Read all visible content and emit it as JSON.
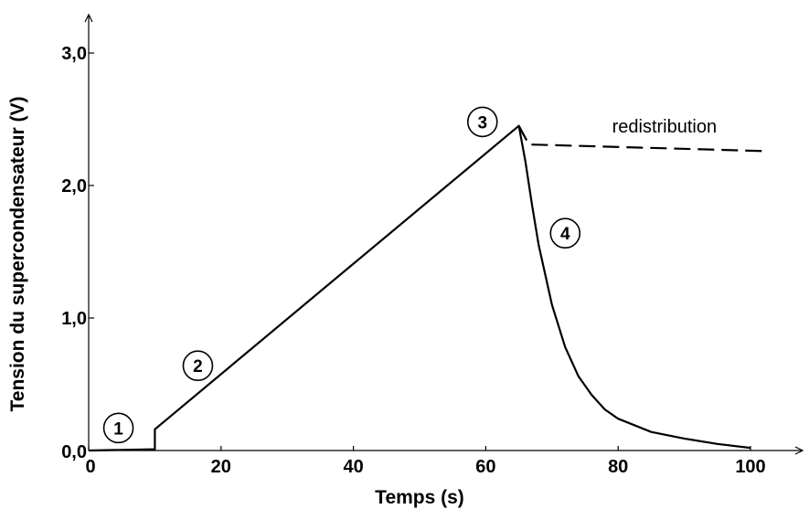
{
  "chart_data": {
    "type": "line",
    "xlabel": "Temps (s)",
    "ylabel": "Tension du supercondensateur  (V)",
    "xlim": [
      0,
      100
    ],
    "ylim": [
      0,
      3.0
    ],
    "x_ticks": [
      0,
      20,
      40,
      60,
      80,
      100
    ],
    "x_tick_labels": [
      "0",
      "20",
      "40",
      "60",
      "80",
      "100"
    ],
    "y_ticks": [
      0,
      1.0,
      2.0,
      3.0
    ],
    "y_tick_labels": [
      "0,0",
      "1,0",
      "2,0",
      "3,0"
    ],
    "grid": false,
    "series": [
      {
        "style": "solid",
        "color": "#000000",
        "x": [
          0,
          10,
          10,
          65,
          66,
          67,
          68,
          70,
          72,
          74,
          76,
          78,
          80,
          85,
          90,
          95,
          100
        ],
        "y": [
          0,
          0.01,
          0.16,
          2.45,
          2.18,
          1.85,
          1.55,
          1.1,
          0.78,
          0.56,
          0.42,
          0.31,
          0.24,
          0.14,
          0.09,
          0.05,
          0.02
        ]
      },
      {
        "style": "dashed",
        "color": "#000000",
        "x": [
          65,
          66.5,
          102
        ],
        "y": [
          2.45,
          2.31,
          2.26
        ]
      }
    ],
    "annotations": [
      {
        "text": "redistribution",
        "x": 87,
        "y": 2.4
      },
      {
        "text": "1",
        "circled": true,
        "x": 4.5,
        "y": 0.17
      },
      {
        "text": "2",
        "circled": true,
        "x": 16.5,
        "y": 0.64
      },
      {
        "text": "3",
        "circled": true,
        "x": 59.5,
        "y": 2.48
      },
      {
        "text": "4",
        "circled": true,
        "x": 72,
        "y": 1.64
      }
    ]
  }
}
